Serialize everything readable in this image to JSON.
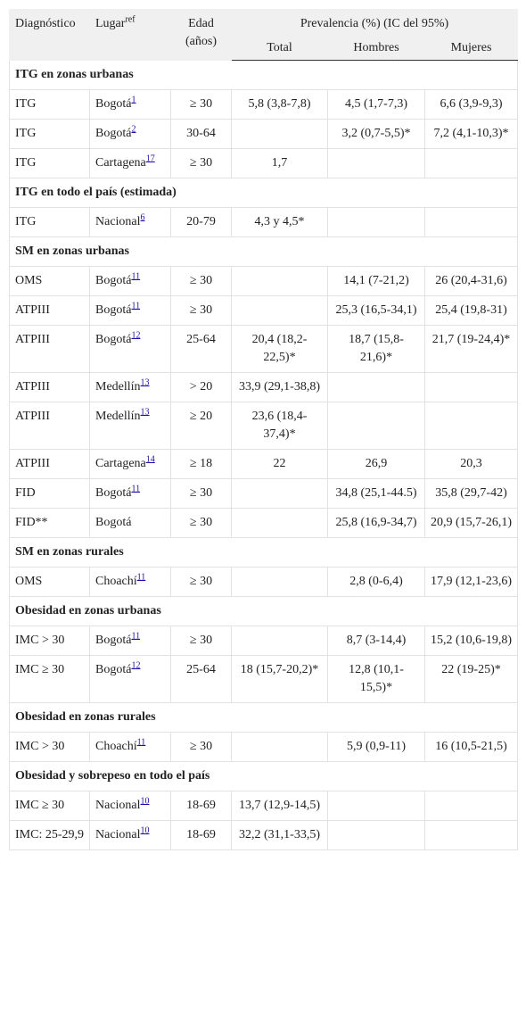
{
  "table": {
    "header": {
      "dx": "Diagnóstico",
      "place": "Lugar",
      "place_sup": "ref",
      "age": "Edad (años)",
      "prev": "Prevalencia (%) (IC del 95%)",
      "total": "Total",
      "men": "Hombres",
      "women": "Mujeres"
    },
    "rows": [
      {
        "section": "ITG en zonas urbanas"
      },
      {
        "dx": "ITG",
        "place": "Bogotá",
        "ref": "1",
        "age": "≥ 30",
        "total": "5,8 (3,8-7,8)",
        "men": "4,5 (1,7-7,3)",
        "women": "6,6 (3,9-9,3)"
      },
      {
        "dx": "ITG",
        "place": "Bogotá",
        "ref": "2",
        "age": "30-64",
        "men": "3,2 (0,7-5,5)*",
        "women": "7,2 (4,1-10,3)*"
      },
      {
        "dx": "ITG",
        "place": "Cartagena",
        "ref": "17",
        "age": "≥ 30",
        "total": "1,7"
      },
      {
        "section": "ITG en todo el país (estimada)"
      },
      {
        "dx": "ITG",
        "place": "Nacional",
        "ref": "6",
        "age": "20-79",
        "total": "4,3 y 4,5*"
      },
      {
        "section": "SM en zonas urbanas"
      },
      {
        "dx": "OMS",
        "place": "Bogotá",
        "ref": "11",
        "age": "≥ 30",
        "men": "14,1 (7-21,2)",
        "women": "26 (20,4-31,6)"
      },
      {
        "dx": "ATPIII",
        "place": "Bogotá",
        "ref": "11",
        "age": "≥ 30",
        "men": "25,3 (16,5-34,1)",
        "women": "25,4 (19,8-31)"
      },
      {
        "dx": "ATPIII",
        "place": "Bogotá",
        "ref": "12",
        "age": "25-64",
        "total": "20,4 (18,2-22,5)*",
        "men": "18,7 (15,8-21,6)*",
        "women": "21,7 (19-24,4)*"
      },
      {
        "dx": "ATPIII",
        "place": "Medellín",
        "ref": "13",
        "age": "> 20",
        "total": "33,9 (29,1-38,8)"
      },
      {
        "dx": "ATPIII",
        "place": "Medellín",
        "ref": "13",
        "age": "≥ 20",
        "total": "23,6 (18,4-37,4)*"
      },
      {
        "dx": "ATPIII",
        "place": "Cartagena",
        "ref": "14",
        "age": "≥ 18",
        "total": "22",
        "men": "26,9",
        "women": "20,3"
      },
      {
        "dx": "FID",
        "place": "Bogotá",
        "ref": "11",
        "age": "≥ 30",
        "men": "34,8 (25,1-44.5)",
        "women": "35,8 (29,7-42)"
      },
      {
        "dx": "FID**",
        "place": "Bogotá",
        "age": "≥ 30",
        "men": "25,8 (16,9-34,7)",
        "women": "20,9 (15,7-26,1)"
      },
      {
        "section": "SM en zonas rurales"
      },
      {
        "dx": "OMS",
        "place": "Choachí",
        "ref": "11",
        "age": "≥ 30",
        "men": "2,8 (0-6,4)",
        "women": "17,9 (12,1-23,6)"
      },
      {
        "section": "Obesidad en zonas urbanas"
      },
      {
        "dx": "IMC > 30",
        "place": "Bogotá",
        "ref": "11",
        "age": "≥ 30",
        "men": "8,7 (3-14,4)",
        "women": "15,2 (10,6-19,8)"
      },
      {
        "dx": "IMC ≥ 30",
        "place": "Bogotá",
        "ref": "12",
        "age": "25-64",
        "total": "18 (15,7-20,2)*",
        "men": "12,8 (10,1-15,5)*",
        "women": "22 (19-25)*"
      },
      {
        "section": "Obesidad en zonas rurales"
      },
      {
        "dx": "IMC > 30",
        "place": "Choachí",
        "ref": "11",
        "age": "≥ 30",
        "men": "5,9 (0,9-11)",
        "women": "16 (10,5-21,5)"
      },
      {
        "section": "Obesidad y sobrepeso en todo el país"
      },
      {
        "dx": "IMC ≥ 30",
        "place": "Nacional",
        "ref": "10",
        "age": "18-69",
        "total": "13,7 (12,9-14,5)"
      },
      {
        "dx": "IMC: 25-29,9",
        "place": "Nacional",
        "ref": "10",
        "age": "18-69",
        "total": "32,2 (31,1-33,5)"
      }
    ]
  }
}
